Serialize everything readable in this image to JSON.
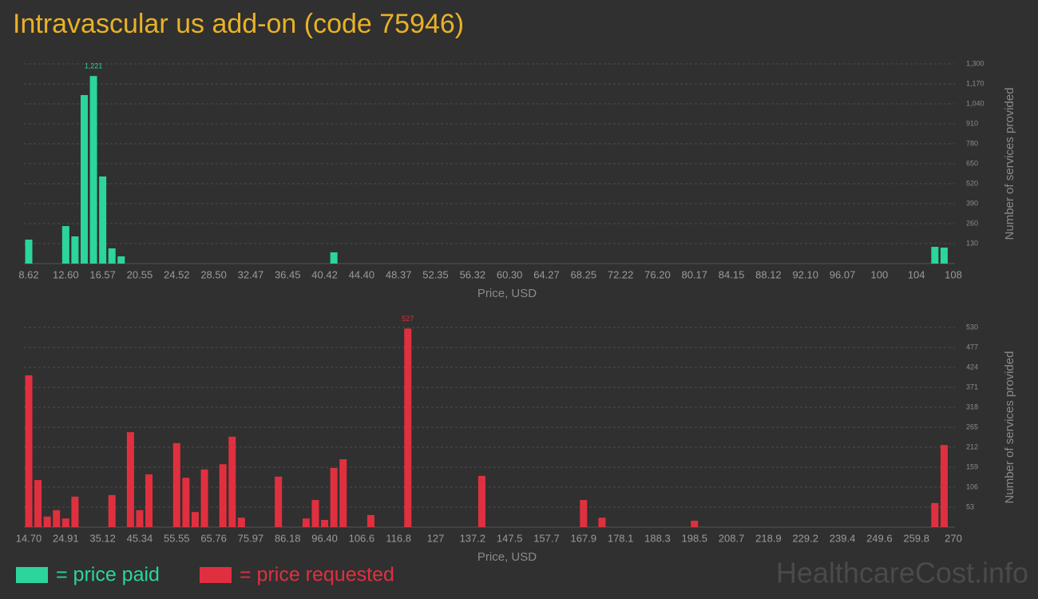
{
  "title": "Intravascular us add-on (code 75946)",
  "watermark": "HealthcareCost.info",
  "chart_data": [
    {
      "type": "bar",
      "categories": [
        "8.62",
        null,
        null,
        null,
        "12.60",
        null,
        null,
        null,
        "16.57",
        null,
        null,
        null,
        "20.55",
        null,
        null,
        null,
        "24.52",
        null,
        null,
        null,
        "28.50",
        null,
        null,
        null,
        "32.47",
        null,
        null,
        null,
        "36.45",
        null,
        null,
        null,
        "40.42",
        null,
        null,
        null,
        "44.40",
        null,
        null,
        null,
        "48.37",
        null,
        null,
        null,
        "52.35",
        null,
        null,
        null,
        "56.32",
        null,
        null,
        null,
        "60.30",
        null,
        null,
        null,
        "64.27",
        null,
        null,
        null,
        "68.25",
        null,
        null,
        null,
        "72.22",
        null,
        null,
        null,
        "76.20",
        null,
        null,
        null,
        "80.17",
        null,
        null,
        null,
        "84.15",
        null,
        null,
        null,
        "88.12",
        null,
        null,
        null,
        "92.10",
        null,
        null,
        null,
        "96.07",
        null,
        null,
        null,
        "100",
        null,
        null,
        null,
        "104",
        null,
        null,
        null,
        "108"
      ],
      "series": [
        {
          "name": "= price paid",
          "color": "#2bd59c",
          "values": [
            156,
            0,
            0,
            0,
            244,
            177,
            1097,
            1221,
            567,
            99,
            47,
            0,
            0,
            0,
            0,
            0,
            0,
            0,
            0,
            0,
            0,
            0,
            0,
            0,
            0,
            0,
            0,
            0,
            0,
            0,
            0,
            0,
            0,
            73,
            0,
            0,
            0,
            0,
            0,
            0,
            0,
            0,
            0,
            0,
            0,
            0,
            0,
            0,
            0,
            0,
            0,
            0,
            0,
            0,
            0,
            0,
            0,
            0,
            0,
            0,
            0,
            0,
            0,
            0,
            0,
            0,
            0,
            0,
            0,
            0,
            0,
            0,
            0,
            0,
            0,
            0,
            0,
            0,
            0,
            0,
            0,
            0,
            0,
            0,
            0,
            0,
            0,
            0,
            0,
            0,
            0,
            0,
            0,
            0,
            0,
            0,
            0,
            0,
            109,
            104,
            0
          ],
          "value_labels": [
            null,
            null,
            null,
            null,
            null,
            null,
            null,
            "1,221",
            null,
            null,
            null,
            null,
            null,
            null,
            null,
            null,
            null,
            null,
            null,
            null,
            null,
            null,
            null,
            null,
            null,
            null,
            null,
            null,
            null,
            null,
            null,
            null,
            null,
            null,
            null,
            null,
            null,
            null,
            null,
            null,
            null,
            null,
            null,
            null,
            null,
            null,
            null,
            null,
            null,
            null,
            null,
            null,
            null,
            null,
            null,
            null,
            null,
            null,
            null,
            null,
            null,
            null,
            null,
            null,
            null,
            null,
            null,
            null,
            null,
            null,
            null,
            null,
            null,
            null,
            null,
            null,
            null,
            null,
            null,
            null,
            null,
            null,
            null,
            null,
            null,
            null,
            null,
            null,
            null,
            null,
            null,
            null,
            null,
            null,
            null,
            null,
            null,
            null,
            null,
            null,
            null
          ]
        }
      ],
      "xlabel": "Price, USD",
      "ylabel": "Number of services provided",
      "ylim": [
        0,
        1300
      ],
      "yticks": [
        130,
        260,
        390,
        520,
        650,
        780,
        910,
        {
          "value": 1040,
          "label": "1,040"
        },
        {
          "value": 1170,
          "label": "1,170"
        },
        {
          "value": 1300,
          "label": "1,300"
        }
      ],
      "grid": true
    },
    {
      "type": "bar",
      "categories": [
        "14.70",
        null,
        null,
        null,
        "24.91",
        null,
        null,
        null,
        "35.12",
        null,
        null,
        null,
        "45.34",
        null,
        null,
        null,
        "55.55",
        null,
        null,
        null,
        "65.76",
        null,
        null,
        null,
        "75.97",
        null,
        null,
        null,
        "86.18",
        null,
        null,
        null,
        "96.40",
        null,
        null,
        null,
        "106.6",
        null,
        null,
        null,
        "116.8",
        null,
        null,
        null,
        "127",
        null,
        null,
        null,
        "137.2",
        null,
        null,
        null,
        "147.5",
        null,
        null,
        null,
        "157.7",
        null,
        null,
        null,
        "167.9",
        null,
        null,
        null,
        "178.1",
        null,
        null,
        null,
        "188.3",
        null,
        null,
        null,
        "198.5",
        null,
        null,
        null,
        "208.7",
        null,
        null,
        null,
        "218.9",
        null,
        null,
        null,
        "229.2",
        null,
        null,
        null,
        "239.4",
        null,
        null,
        null,
        "249.6",
        null,
        null,
        null,
        "259.8",
        null,
        null,
        null,
        "270"
      ],
      "series": [
        {
          "name": "= price requested",
          "color": "#e0303f",
          "values": [
            403,
            125,
            28,
            45,
            23,
            81,
            0,
            0,
            0,
            85,
            0,
            252,
            45,
            140,
            0,
            0,
            223,
            131,
            40,
            153,
            0,
            167,
            240,
            25,
            0,
            0,
            0,
            134,
            0,
            0,
            23,
            72,
            19,
            157,
            180,
            0,
            0,
            32,
            0,
            0,
            0,
            527,
            0,
            0,
            0,
            0,
            0,
            0,
            0,
            136,
            0,
            0,
            0,
            0,
            0,
            0,
            0,
            0,
            0,
            0,
            72,
            0,
            25,
            0,
            0,
            0,
            0,
            0,
            0,
            0,
            0,
            0,
            17,
            0,
            0,
            0,
            0,
            0,
            0,
            0,
            0,
            0,
            0,
            0,
            0,
            0,
            0,
            0,
            0,
            0,
            0,
            0,
            0,
            0,
            0,
            0,
            0,
            0,
            64,
            218,
            0
          ],
          "value_labels": [
            null,
            null,
            null,
            null,
            null,
            null,
            null,
            null,
            null,
            null,
            null,
            null,
            null,
            null,
            null,
            null,
            null,
            null,
            null,
            null,
            null,
            null,
            null,
            null,
            null,
            null,
            null,
            null,
            null,
            null,
            null,
            null,
            null,
            null,
            null,
            null,
            null,
            null,
            null,
            null,
            null,
            "527",
            null,
            null,
            null,
            null,
            null,
            null,
            null,
            null,
            null,
            null,
            null,
            null,
            null,
            null,
            null,
            null,
            null,
            null,
            null,
            null,
            null,
            null,
            null,
            null,
            null,
            null,
            null,
            null,
            null,
            null,
            null,
            null,
            null,
            null,
            null,
            null,
            null,
            null,
            null,
            null,
            null,
            null,
            null,
            null,
            null,
            null,
            null,
            null,
            null,
            null,
            null,
            null,
            null,
            null,
            null,
            null,
            null,
            null,
            null
          ]
        }
      ],
      "xlabel": "Price, USD",
      "ylabel": "Number of services provided",
      "ylim": [
        0,
        530
      ],
      "yticks": [
        53,
        106,
        159,
        212,
        265,
        318,
        371,
        424,
        477,
        530
      ],
      "grid": true
    }
  ]
}
